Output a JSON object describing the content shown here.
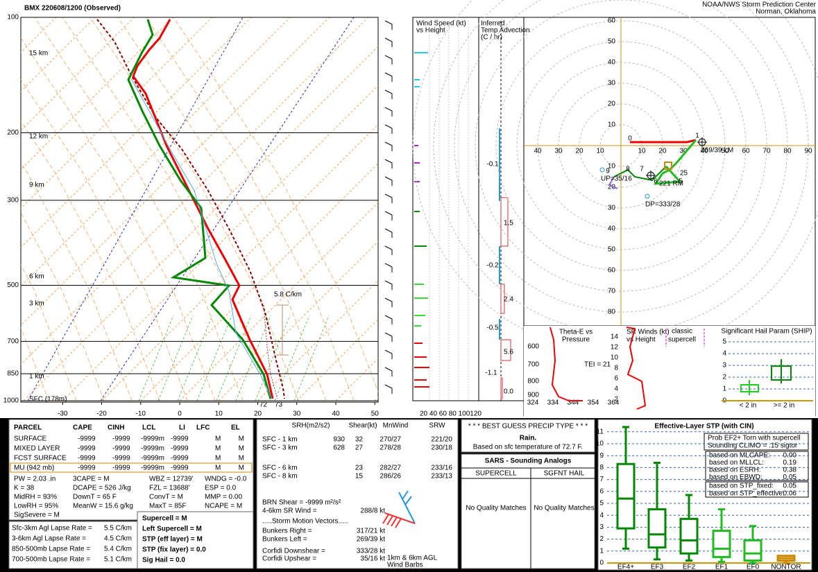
{
  "header": {
    "title": "BMX   220608/1200  (Observed)",
    "org": "NOAA/NWS Storm Prediction Center",
    "place": "Norman, Oklahoma"
  },
  "skewt": {
    "pressures": [
      100,
      200,
      300,
      500,
      700,
      850,
      1000
    ],
    "temps": [
      -30,
      -20,
      -10,
      0,
      10,
      20,
      30,
      40,
      50
    ],
    "heights": [
      "15 km",
      "12 km",
      "9 km",
      "6 km",
      "3 km",
      "1 km",
      "SFC (178m)"
    ],
    "lapse": "5.8 C/km",
    "sfc_td": "72",
    "sfc_t": "73"
  },
  "wind": {
    "title": [
      "Wind Speed (kt)",
      "vs Height"
    ],
    "ticks": "20 40 60 80 100120"
  },
  "advection": {
    "title": [
      "Inferred",
      "Temp Advection",
      "(C / hr)"
    ],
    "values": [
      "-0.1",
      "1.5",
      "-0.2",
      "2.4",
      "-0.5",
      "5.6",
      "-1.1",
      "0.0"
    ]
  },
  "hodo": {
    "xlabels": [
      "40",
      "30",
      "20",
      "10",
      "10",
      "20",
      "30",
      "40",
      "50",
      "60",
      "70",
      "80",
      "90"
    ],
    "ylabels_up": [
      "60",
      "50",
      "40",
      "30",
      "20",
      "10"
    ],
    "ylabels_down": [
      "10",
      "20",
      "30",
      "40",
      "50",
      "60",
      "70",
      "80"
    ],
    "points": [
      "0",
      "1",
      "5",
      "6",
      "7",
      "8",
      "9"
    ],
    "lm": "269/39 LM",
    "rm": "221 RM",
    "up": "UP=35/16",
    "dp": "DP=333/28",
    "other": "25"
  },
  "theta": {
    "title": [
      "Theta-E vs",
      "Pressure"
    ],
    "tei": "TEI = 21",
    "ylabels": [
      "600",
      "700",
      "800",
      "900"
    ],
    "xlabels": [
      "324",
      "334",
      "344",
      "354",
      "364"
    ]
  },
  "srw": {
    "title": [
      "SR Winds (kt)",
      "vs Height"
    ],
    "tag": [
      "classic",
      "supercell"
    ],
    "ylabels": [
      "14",
      "12",
      "10",
      "8",
      "6",
      "4",
      "2"
    ]
  },
  "ship": {
    "title": "Significant Hail Param (SHIP)",
    "ylabels": [
      "5",
      "4",
      "3",
      "2",
      "1",
      "0"
    ],
    "cats": [
      "< 2 in",
      ">= 2 in"
    ]
  },
  "parcel": {
    "headers": [
      "PARCEL",
      "CAPE",
      "CINH",
      "LCL",
      "LI",
      "LFC",
      "EL"
    ],
    "rows": [
      [
        "SURFACE",
        "-9999",
        "-9999",
        "-9999m",
        "-9999",
        "M",
        "M"
      ],
      [
        "MIXED LAYER",
        "-9999",
        "-9999",
        "-9999m",
        "-9999",
        "M",
        "M"
      ],
      [
        "FCST SURFACE",
        "-9999",
        "-9999",
        "-9999m",
        "-9999",
        "M",
        "M"
      ],
      [
        "MU  (942 mb)",
        "-9999",
        "-9999",
        "-9999m",
        "-9999",
        "M",
        "M"
      ]
    ],
    "indices": [
      [
        "PW = 2.03 .in",
        "K = 38",
        "MidRH = 93%",
        "LowRH = 95%",
        "SigSevere = M"
      ],
      [
        "3CAPE = M",
        "DCAPE = 526 J/kg",
        "DownT = 65 F",
        "MeanW = 15.6 g/kg"
      ],
      [
        "WBZ = 12739'",
        "FZL = 13688'",
        "ConvT = M",
        "MaxT = 85F"
      ],
      [
        "WNDG = -0.0",
        "ESP = 0.0",
        "MMP = 0.00",
        "NCAPE = M"
      ]
    ],
    "lapse": [
      [
        "Sfc-3km Agl Lapse Rate =",
        "5.5 C/km"
      ],
      [
        "3-6km Agl Lapse Rate =",
        "4.5 C/km"
      ],
      [
        "850-500mb Lapse Rate =",
        "5.4 C/km"
      ],
      [
        "700-500mb Lapse Rate =",
        "5.1 C/km"
      ]
    ],
    "severe": [
      "Supercell = M",
      "Left Supercell = M",
      "STP (eff layer) = M",
      "STP (fix layer) = 0.0",
      "Sig Hail = 0.0"
    ]
  },
  "kinematics": {
    "headers": [
      "SRH(m2/s2)",
      "Shear(kt)",
      "MnWind",
      "SRW"
    ],
    "rows_a": [
      [
        "SFC - 1 km",
        "930",
        "32",
        "270/27",
        "221/20"
      ],
      [
        "SFC - 3 km",
        "628",
        "27",
        "278/28",
        "230/18"
      ]
    ],
    "rows_b": [
      [
        "SFC - 6 km",
        "23",
        "282/27",
        "233/16"
      ],
      [
        "SFC - 8 km",
        "15",
        "286/26",
        "233/13"
      ]
    ],
    "brn": "BRN Shear = -9999 m²/s²",
    "srwind": [
      "4-6km SR Wind =",
      "288/8 kt"
    ],
    "motion": ".....Storm Motion Vectors.....",
    "vectors": [
      [
        "Bunkers Right =",
        "317/21 kt"
      ],
      [
        "Bunkers Left =",
        "269/39 kt"
      ],
      [
        "Corfidi Downshear =",
        "333/28 kt"
      ],
      [
        "Corfidi Upshear =",
        "35/16 kt"
      ]
    ],
    "barbs": [
      "1km & 6km AGL",
      "Wind Barbs"
    ]
  },
  "precip": {
    "title": "* * * BEST GUESS PRECIP TYPE * * *",
    "type": "Rain.",
    "basis": "Based on sfc temperature of 72.7 F."
  },
  "sars": {
    "title": "SARS - Sounding Analogs",
    "headers": [
      "SUPERCELL",
      "SGFNT HAIL"
    ],
    "matches": [
      "No Quality Matches",
      "No Quality Matches"
    ]
  },
  "stp": {
    "title": "Effective-Layer STP (with CIN)",
    "prob": [
      "Prob EF2+ Torn with supercell",
      "Sounding CLIMO = .15 sigtor"
    ],
    "rows": [
      [
        "based on MLCAPE:",
        "0.00"
      ],
      [
        "based on MLLCL:",
        "0.19"
      ],
      [
        "based on ESRH:",
        "0.38"
      ],
      [
        "based on EBWD:",
        "0.05"
      ]
    ],
    "rows2": [
      [
        "based on STP_fixed:",
        "0.05"
      ],
      [
        "based on STP_effective:",
        "0.06"
      ]
    ],
    "yticks": [
      "0",
      "1",
      "2",
      "3",
      "4",
      "5",
      "6",
      "7",
      "8",
      "9",
      "10",
      "11"
    ],
    "cats": [
      "EF4+",
      "EF3",
      "EF2",
      "EF1",
      "EF0",
      "NONTOR"
    ]
  }
}
